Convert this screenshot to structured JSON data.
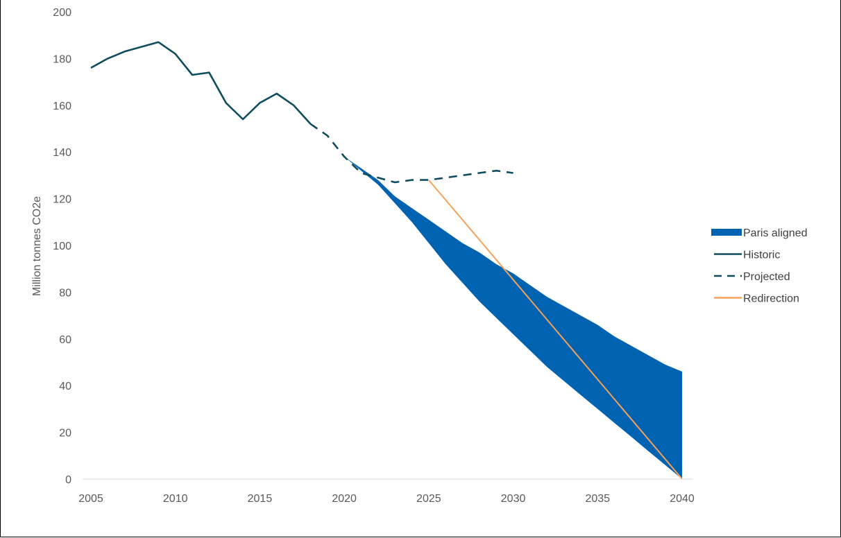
{
  "chart_data": {
    "type": "line",
    "title": "",
    "xlabel": "",
    "ylabel": "Million tonnes CO2e",
    "xlim": [
      2005,
      2040
    ],
    "ylim": [
      0,
      200
    ],
    "x_ticks": [
      "2005",
      "2010",
      "2015",
      "2020",
      "2025",
      "2030",
      "2035",
      "2040"
    ],
    "y_ticks": [
      "0",
      "20",
      "40",
      "60",
      "80",
      "100",
      "120",
      "140",
      "160",
      "180",
      "200"
    ],
    "grid": false,
    "legend_position": "right",
    "series": [
      {
        "name": "Paris aligned",
        "kind": "band",
        "color": "#0063B1",
        "x": [
          2020,
          2021,
          2022,
          2023,
          2024,
          2025,
          2026,
          2027,
          2028,
          2029,
          2030,
          2031,
          2032,
          2033,
          2034,
          2035,
          2036,
          2037,
          2038,
          2039,
          2040
        ],
        "upper": [
          138,
          133,
          128,
          121,
          116,
          111,
          106,
          101,
          97,
          92,
          88,
          83,
          78,
          74,
          70,
          66,
          61,
          57,
          53,
          49,
          46
        ],
        "lower": [
          138,
          132,
          126,
          118,
          110,
          101,
          92,
          84,
          76,
          69,
          62,
          55,
          48,
          42,
          36,
          30,
          24,
          18,
          12,
          6,
          0
        ]
      },
      {
        "name": "Historic",
        "kind": "line",
        "color": "#0E4C5E",
        "x": [
          2005,
          2006,
          2007,
          2008,
          2009,
          2010,
          2011,
          2012,
          2013,
          2014,
          2015,
          2016,
          2017,
          2018
        ],
        "values": [
          176,
          180,
          183,
          185,
          187,
          182,
          173,
          174,
          161,
          154,
          161,
          165,
          160,
          152
        ]
      },
      {
        "name": "Projected",
        "kind": "dashed",
        "color": "#0E4C5E",
        "x": [
          2018,
          2019,
          2020,
          2021,
          2022,
          2023,
          2024,
          2025,
          2026,
          2027,
          2028,
          2029,
          2030
        ],
        "values": [
          152,
          147,
          138,
          131,
          129,
          127,
          128,
          128,
          129,
          130,
          131,
          132,
          131
        ]
      },
      {
        "name": "Redirection",
        "kind": "line",
        "color": "#F4A259",
        "x": [
          2025,
          2040
        ],
        "values": [
          128,
          0
        ]
      }
    ]
  }
}
